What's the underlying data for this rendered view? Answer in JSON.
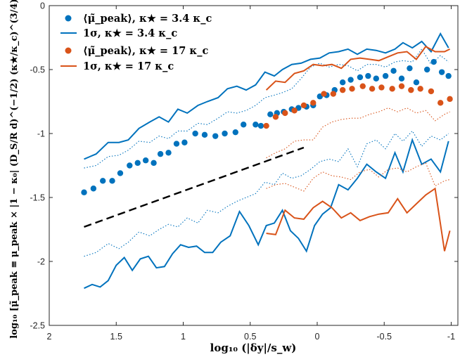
{
  "chart_data": {
    "type": "line",
    "xlabel": "log₁₀ (|δy|/s_w)",
    "ylabel": "log₁₀ [μ̃_peak ≡ μ_peak × |1 − κ₀| (D_S/R d)^(−1/2) (κ★/κ_c)^(3/4)]",
    "xlim": [
      2,
      -1.05
    ],
    "ylim": [
      -2.5,
      0
    ],
    "x_reversed": true,
    "xticks": [
      2,
      1.5,
      1,
      0.5,
      0,
      -0.5,
      -1
    ],
    "xtick_labels": [
      "2",
      "1.5",
      "1",
      "0.5",
      "0",
      "-0.5",
      "-1"
    ],
    "yticks": [
      0,
      -0.5,
      -1,
      -1.5,
      -2,
      -2.5
    ],
    "ytick_labels": [
      "0",
      "-0.5",
      "-1",
      "-1.5",
      "-2",
      "-2.5"
    ],
    "legend": {
      "position": "top-left",
      "entries": [
        {
          "label": "⟨μ̃_peak⟩, κ★ = 3.4 κ_c",
          "marker": "dot",
          "color": "#0072BD"
        },
        {
          "label": "1σ, κ★ = 3.4 κ_c",
          "marker": "line",
          "color": "#0072BD"
        },
        {
          "label": "⟨μ̃_peak⟩, κ★ = 17 κ_c",
          "marker": "dot",
          "color": "#D95319"
        },
        {
          "label": "1σ, κ★ = 17 κ_c",
          "marker": "line",
          "color": "#D95319"
        }
      ]
    },
    "colors": {
      "blue": "#0072BD",
      "orange": "#D95319",
      "reference": "#000000"
    },
    "series": [
      {
        "name": "mean k=3.4",
        "style": "dots",
        "color": "#0072BD",
        "x": [
          1.74,
          1.67,
          1.6,
          1.53,
          1.47,
          1.4,
          1.34,
          1.28,
          1.22,
          1.17,
          1.11,
          1.05,
          0.99,
          0.91,
          0.84,
          0.76,
          0.69,
          0.61,
          0.55,
          0.46,
          0.42,
          0.35,
          0.3,
          0.25,
          0.19,
          0.14,
          0.08,
          0.03,
          -0.02,
          -0.07,
          -0.13,
          -0.19,
          -0.25,
          -0.32,
          -0.38,
          -0.44,
          -0.51,
          -0.57,
          -0.63,
          -0.69,
          -0.74,
          -0.82,
          -0.87,
          -0.93,
          -0.98
        ],
        "y": [
          -1.46,
          -1.43,
          -1.37,
          -1.37,
          -1.31,
          -1.25,
          -1.23,
          -1.21,
          -1.23,
          -1.16,
          -1.15,
          -1.08,
          -1.07,
          -1.0,
          -1.01,
          -1.02,
          -1.0,
          -0.99,
          -0.93,
          -0.93,
          -0.94,
          -0.85,
          -0.84,
          -0.83,
          -0.81,
          -0.8,
          -0.79,
          -0.78,
          -0.71,
          -0.7,
          -0.66,
          -0.6,
          -0.58,
          -0.56,
          -0.55,
          -0.57,
          -0.55,
          -0.51,
          -0.57,
          -0.49,
          -0.6,
          -0.5,
          -0.44,
          -0.52,
          -0.55
        ]
      },
      {
        "name": "1sigma upper k=3.4",
        "style": "solid",
        "color": "#0072BD",
        "x": [
          1.74,
          1.65,
          1.56,
          1.48,
          1.41,
          1.33,
          1.25,
          1.18,
          1.11,
          1.04,
          0.97,
          0.89,
          0.82,
          0.74,
          0.67,
          0.6,
          0.53,
          0.46,
          0.39,
          0.32,
          0.26,
          0.19,
          0.12,
          0.05,
          -0.02,
          -0.09,
          -0.16,
          -0.23,
          -0.3,
          -0.37,
          -0.44,
          -0.51,
          -0.58,
          -0.64,
          -0.71,
          -0.78,
          -0.85,
          -0.92,
          -0.98
        ],
        "y": [
          -1.2,
          -1.16,
          -1.07,
          -1.07,
          -1.05,
          -0.96,
          -0.91,
          -0.87,
          -0.91,
          -0.81,
          -0.84,
          -0.78,
          -0.75,
          -0.72,
          -0.65,
          -0.63,
          -0.66,
          -0.62,
          -0.52,
          -0.55,
          -0.5,
          -0.46,
          -0.45,
          -0.42,
          -0.41,
          -0.37,
          -0.36,
          -0.34,
          -0.38,
          -0.34,
          -0.35,
          -0.37,
          -0.34,
          -0.29,
          -0.33,
          -0.28,
          -0.36,
          -0.22,
          -0.33
        ]
      },
      {
        "name": "1sigma dotted upper k=3.4",
        "style": "dotted",
        "color": "#0072BD",
        "x": [
          1.74,
          1.65,
          1.56,
          1.48,
          1.41,
          1.33,
          1.25,
          1.18,
          1.11,
          1.04,
          0.97,
          0.89,
          0.82,
          0.74,
          0.67,
          0.6,
          0.53,
          0.46,
          0.39,
          0.32,
          0.26,
          0.19,
          0.12,
          0.05,
          -0.02,
          -0.09,
          -0.16,
          -0.23,
          -0.3,
          -0.37,
          -0.44,
          -0.51,
          -0.58,
          -0.64,
          -0.71,
          -0.78,
          -0.85,
          -0.92,
          -0.98
        ],
        "y": [
          -1.27,
          -1.25,
          -1.18,
          -1.17,
          -1.13,
          -1.06,
          -1.07,
          -1.02,
          -1.04,
          -0.98,
          -0.98,
          -0.92,
          -0.93,
          -0.88,
          -0.83,
          -0.84,
          -0.82,
          -0.78,
          -0.72,
          -0.7,
          -0.68,
          -0.65,
          -0.57,
          -0.48,
          -0.45,
          -0.48,
          -0.46,
          -0.47,
          -0.51,
          -0.46,
          -0.46,
          -0.48,
          -0.44,
          -0.43,
          -0.44,
          -0.34,
          -0.46,
          -0.39,
          -0.44
        ]
      },
      {
        "name": "1sigma dotted lower k=3.4",
        "style": "dotted",
        "color": "#0072BD",
        "x": [
          1.74,
          1.65,
          1.56,
          1.48,
          1.41,
          1.33,
          1.25,
          1.18,
          1.11,
          1.04,
          0.97,
          0.89,
          0.82,
          0.74,
          0.67,
          0.6,
          0.53,
          0.46,
          0.39,
          0.32,
          0.26,
          0.19,
          0.12,
          0.05,
          -0.02,
          -0.09,
          -0.16,
          -0.23,
          -0.3,
          -0.37,
          -0.44,
          -0.51,
          -0.58,
          -0.64,
          -0.71,
          -0.78,
          -0.85,
          -0.92,
          -0.98
        ],
        "y": [
          -1.96,
          -1.93,
          -1.86,
          -1.9,
          -1.85,
          -1.77,
          -1.8,
          -1.75,
          -1.71,
          -1.73,
          -1.66,
          -1.7,
          -1.6,
          -1.62,
          -1.57,
          -1.53,
          -1.5,
          -1.47,
          -1.38,
          -1.4,
          -1.31,
          -1.35,
          -1.33,
          -1.28,
          -1.22,
          -1.2,
          -1.22,
          -1.12,
          -1.26,
          -1.08,
          -1.05,
          -1.12,
          -1.0,
          -1.06,
          -0.98,
          -1.1,
          -1.02,
          -1.05,
          -1.0
        ]
      },
      {
        "name": "1sigma lower k=3.4",
        "style": "solid",
        "color": "#0072BD",
        "x": [
          1.74,
          1.68,
          1.62,
          1.56,
          1.5,
          1.44,
          1.38,
          1.32,
          1.26,
          1.2,
          1.14,
          1.08,
          1.02,
          0.96,
          0.9,
          0.84,
          0.78,
          0.72,
          0.65,
          0.58,
          0.51,
          0.44,
          0.38,
          0.32,
          0.26,
          0.2,
          0.14,
          0.08,
          0.02,
          -0.04,
          -0.1,
          -0.16,
          -0.23,
          -0.3,
          -0.37,
          -0.44,
          -0.51,
          -0.58,
          -0.64,
          -0.71,
          -0.78,
          -0.85,
          -0.92,
          -0.98
        ],
        "y": [
          -2.21,
          -2.18,
          -2.2,
          -2.15,
          -2.03,
          -1.97,
          -2.07,
          -1.98,
          -1.96,
          -2.05,
          -2.04,
          -1.94,
          -1.87,
          -1.89,
          -1.88,
          -1.93,
          -1.93,
          -1.85,
          -1.8,
          -1.61,
          -1.72,
          -1.87,
          -1.72,
          -1.7,
          -1.6,
          -1.76,
          -1.82,
          -1.92,
          -1.72,
          -1.63,
          -1.58,
          -1.4,
          -1.44,
          -1.35,
          -1.24,
          -1.3,
          -1.35,
          -1.15,
          -1.3,
          -1.05,
          -1.24,
          -1.2,
          -1.3,
          -1.06
        ]
      },
      {
        "name": "mean k=17",
        "style": "dots",
        "color": "#D95319",
        "x": [
          0.38,
          0.31,
          0.24,
          0.17,
          0.1,
          0.03,
          -0.05,
          -0.12,
          -0.19,
          -0.26,
          -0.34,
          -0.41,
          -0.48,
          -0.56,
          -0.63,
          -0.7,
          -0.77,
          -0.85,
          -0.92,
          -0.99
        ],
        "y": [
          -0.94,
          -0.87,
          -0.84,
          -0.82,
          -0.78,
          -0.76,
          -0.69,
          -0.69,
          -0.66,
          -0.65,
          -0.63,
          -0.65,
          -0.64,
          -0.65,
          -0.63,
          -0.66,
          -0.65,
          -0.67,
          -0.76,
          -0.73
        ]
      },
      {
        "name": "1sigma upper k=17",
        "style": "solid",
        "color": "#D95319",
        "x": [
          0.38,
          0.31,
          0.24,
          0.17,
          0.1,
          0.03,
          -0.04,
          -0.11,
          -0.18,
          -0.25,
          -0.32,
          -0.39,
          -0.46,
          -0.53,
          -0.6,
          -0.67,
          -0.74,
          -0.81,
          -0.88,
          -0.95,
          -0.99
        ],
        "y": [
          -0.66,
          -0.59,
          -0.6,
          -0.53,
          -0.51,
          -0.46,
          -0.47,
          -0.46,
          -0.49,
          -0.42,
          -0.41,
          -0.42,
          -0.43,
          -0.4,
          -0.37,
          -0.36,
          -0.42,
          -0.32,
          -0.36,
          -0.36,
          -0.34
        ]
      },
      {
        "name": "1sigma dotted upper k=17",
        "style": "dotted",
        "color": "#D95319",
        "x": [
          0.38,
          0.31,
          0.24,
          0.17,
          0.1,
          0.03,
          -0.04,
          -0.11,
          -0.18,
          -0.25,
          -0.32,
          -0.39,
          -0.46,
          -0.53,
          -0.6,
          -0.67,
          -0.74,
          -0.81,
          -0.88,
          -0.95,
          -0.99
        ],
        "y": [
          -1.19,
          -1.15,
          -1.12,
          -1.06,
          -1.05,
          -1.05,
          -0.95,
          -0.91,
          -0.89,
          -0.88,
          -0.88,
          -0.85,
          -0.83,
          -0.8,
          -0.83,
          -0.8,
          -0.84,
          -0.82,
          -0.9,
          -0.85,
          -0.83
        ]
      },
      {
        "name": "1sigma dotted lower k=17",
        "style": "dotted",
        "color": "#D95319",
        "x": [
          0.38,
          0.31,
          0.24,
          0.17,
          0.1,
          0.03,
          -0.04,
          -0.11,
          -0.18,
          -0.25,
          -0.32,
          -0.39,
          -0.46,
          -0.53,
          -0.6,
          -0.67,
          -0.74,
          -0.81,
          -0.88,
          -0.95,
          -0.99
        ],
        "y": [
          -1.43,
          -1.4,
          -1.39,
          -1.42,
          -1.45,
          -1.35,
          -1.3,
          -1.33,
          -1.34,
          -1.36,
          -1.3,
          -1.28,
          -1.34,
          -1.28,
          -1.27,
          -1.3,
          -1.26,
          -1.23,
          -1.41,
          -1.37,
          -1.36
        ]
      },
      {
        "name": "1sigma lower k=17",
        "style": "solid",
        "color": "#D95319",
        "x": [
          0.38,
          0.31,
          0.24,
          0.17,
          0.1,
          0.03,
          -0.04,
          -0.11,
          -0.18,
          -0.25,
          -0.32,
          -0.39,
          -0.46,
          -0.53,
          -0.6,
          -0.67,
          -0.74,
          -0.81,
          -0.88,
          -0.95,
          -0.99
        ],
        "y": [
          -1.78,
          -1.79,
          -1.6,
          -1.66,
          -1.67,
          -1.58,
          -1.53,
          -1.58,
          -1.66,
          -1.62,
          -1.68,
          -1.65,
          -1.63,
          -1.62,
          -1.51,
          -1.62,
          -1.55,
          -1.48,
          -1.43,
          -1.92,
          -1.76
        ]
      },
      {
        "name": "reference slope",
        "style": "dashed",
        "color": "#000000",
        "x": [
          1.74,
          0.1
        ],
        "y": [
          -1.73,
          -1.11
        ]
      }
    ]
  }
}
